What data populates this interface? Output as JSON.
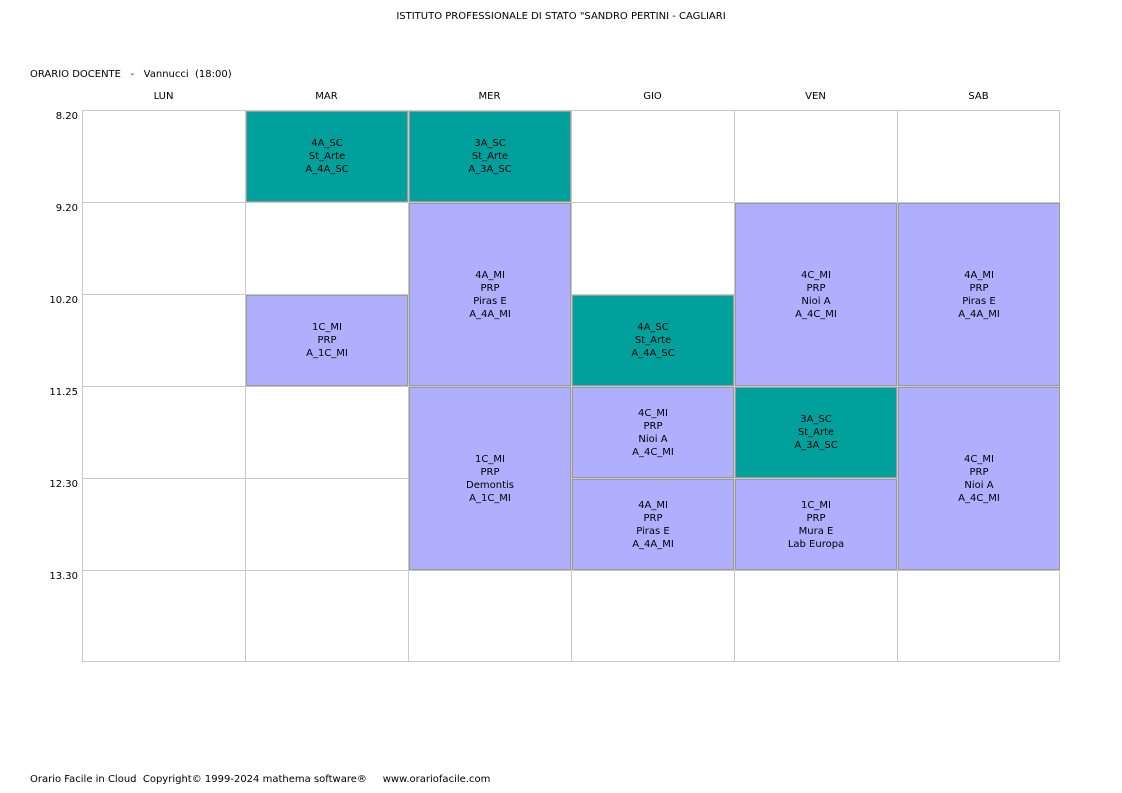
{
  "header": {
    "title": "ISTITUTO PROFESSIONALE DI STATO \"SANDRO PERTINI - CAGLIARI",
    "subtitle": "ORARIO DOCENTE   -   Vannucci  (18:00)"
  },
  "days": [
    "LUN",
    "MAR",
    "MER",
    "GIO",
    "VEN",
    "SAB"
  ],
  "times": [
    "8.20",
    "9.20",
    "10.20",
    "11.25",
    "12.30",
    "13.30"
  ],
  "colors": {
    "teal": "#00a19c",
    "lavender": "#afaffd",
    "grid": "#c8c8c8"
  },
  "lessons": [
    {
      "day": 1,
      "start": 0,
      "span": 1,
      "color": "teal",
      "lines": [
        "4A_SC",
        "St_Arte",
        "A_4A_SC"
      ]
    },
    {
      "day": 2,
      "start": 0,
      "span": 1,
      "color": "teal",
      "lines": [
        "3A_SC",
        "St_Arte",
        "A_3A_SC"
      ]
    },
    {
      "day": 2,
      "start": 1,
      "span": 2,
      "color": "lavender",
      "lines": [
        "4A_MI",
        "PRP",
        "Piras E",
        "A_4A_MI"
      ]
    },
    {
      "day": 4,
      "start": 1,
      "span": 2,
      "color": "lavender",
      "lines": [
        "4C_MI",
        "PRP",
        "Nioi A",
        "A_4C_MI"
      ]
    },
    {
      "day": 5,
      "start": 1,
      "span": 2,
      "color": "lavender",
      "lines": [
        "4A_MI",
        "PRP",
        "Piras E",
        "A_4A_MI"
      ]
    },
    {
      "day": 1,
      "start": 2,
      "span": 1,
      "color": "lavender",
      "lines": [
        "1C_MI",
        "PRP",
        "A_1C_MI"
      ]
    },
    {
      "day": 3,
      "start": 2,
      "span": 1,
      "color": "teal",
      "lines": [
        "4A_SC",
        "St_Arte",
        "A_4A_SC"
      ]
    },
    {
      "day": 2,
      "start": 3,
      "span": 2,
      "color": "lavender",
      "lines": [
        "1C_MI",
        "PRP",
        "Demontis",
        "A_1C_MI"
      ]
    },
    {
      "day": 3,
      "start": 3,
      "span": 1,
      "color": "lavender",
      "lines": [
        "4C_MI",
        "PRP",
        "Nioi A",
        "A_4C_MI"
      ]
    },
    {
      "day": 4,
      "start": 3,
      "span": 1,
      "color": "teal",
      "lines": [
        "3A_SC",
        "St_Arte",
        "A_3A_SC"
      ]
    },
    {
      "day": 5,
      "start": 3,
      "span": 2,
      "color": "lavender",
      "lines": [
        "4C_MI",
        "PRP",
        "Nioi A",
        "A_4C_MI"
      ]
    },
    {
      "day": 3,
      "start": 4,
      "span": 1,
      "color": "lavender",
      "lines": [
        "4A_MI",
        "PRP",
        "Piras E",
        "A_4A_MI"
      ]
    },
    {
      "day": 4,
      "start": 4,
      "span": 1,
      "color": "lavender",
      "lines": [
        "1C_MI",
        "PRP",
        "Mura E",
        "Lab Europa"
      ]
    }
  ],
  "footer": {
    "text": "Orario Facile in Cloud  Copyright© 1999-2024 mathema software®     www.orariofacile.com"
  }
}
